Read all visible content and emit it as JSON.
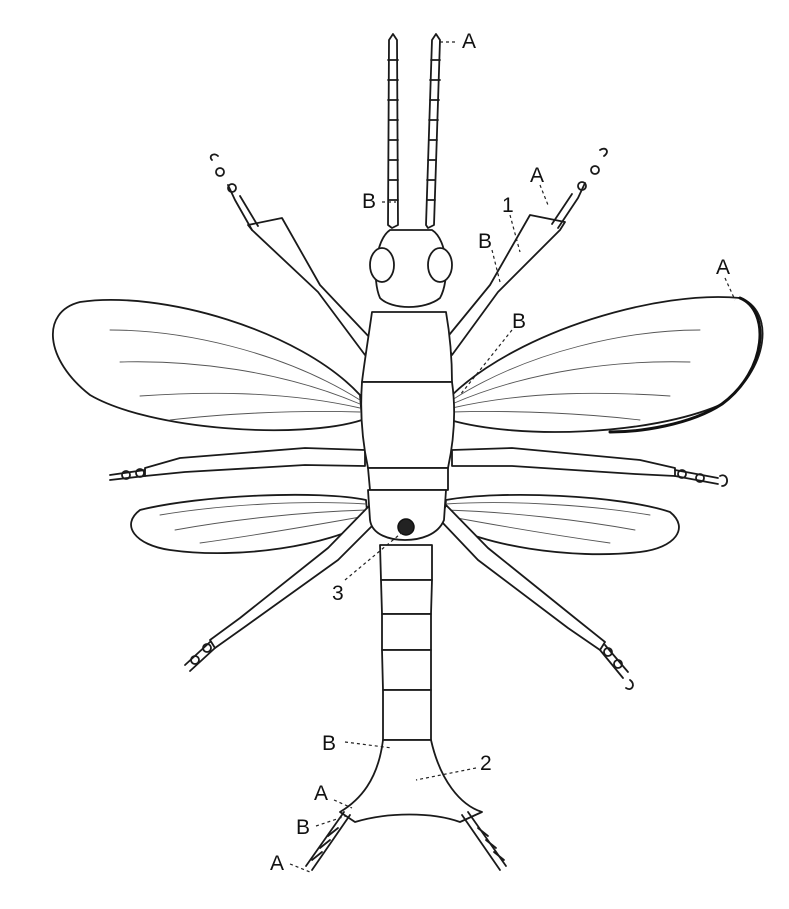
{
  "labels": {
    "antenna_tip": "A",
    "antenna_base": "B",
    "leg_tip": "A",
    "leg_joint": "B",
    "part_1": "1",
    "wing_tip": "A",
    "wing_base": "B",
    "part_2": "2",
    "part_3": "3",
    "abdomen_b": "B",
    "cercus_a": "A",
    "cercus_b": "B",
    "cercus_tip_a": "A"
  }
}
